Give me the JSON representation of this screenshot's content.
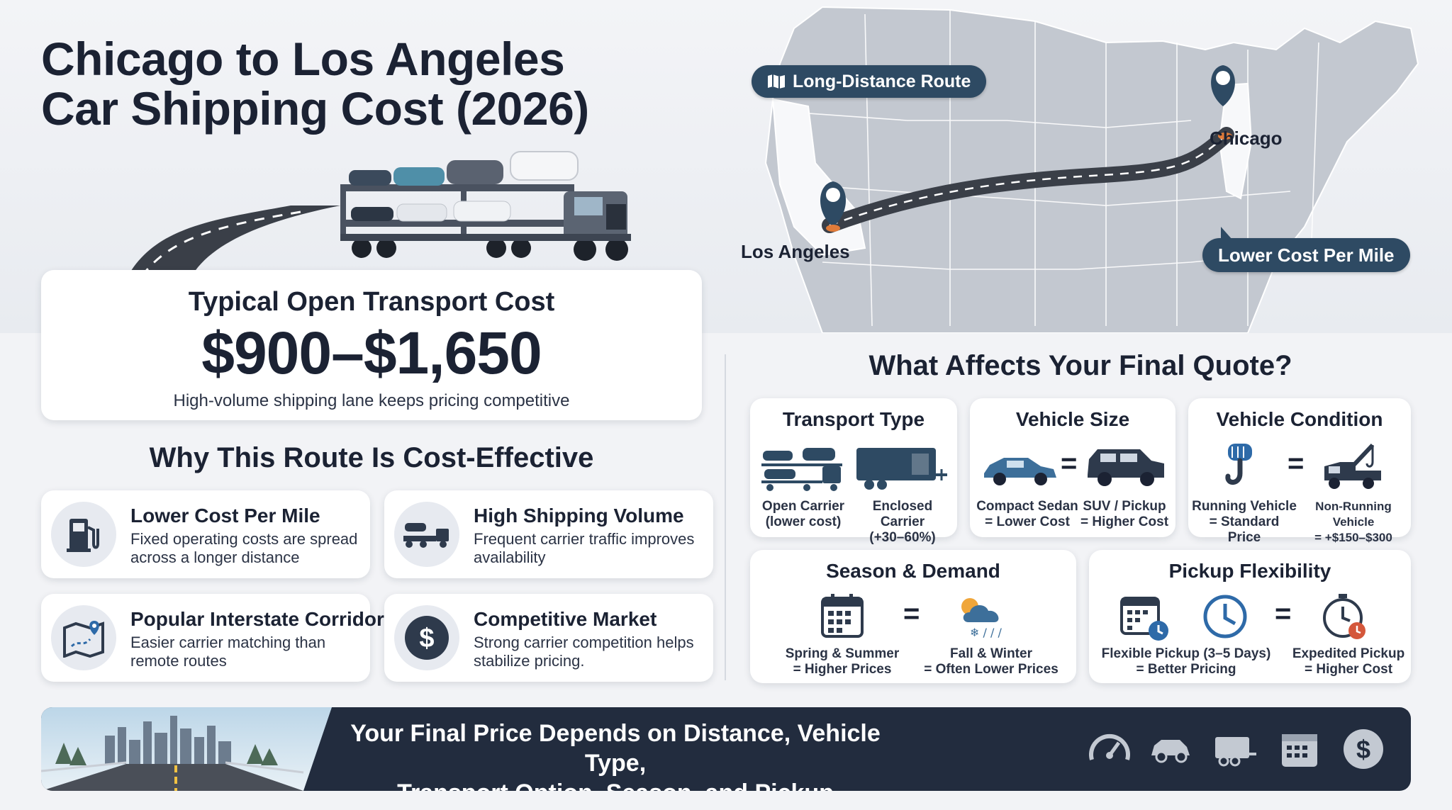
{
  "title": {
    "line1": "Chicago to Los Angeles",
    "line2": "Car Shipping Cost (2026)"
  },
  "map": {
    "route_pill": "Long-Distance Route",
    "origin": "Chicago",
    "destination": "Los Angeles",
    "lower_cost_pill": "Lower Cost Per Mile"
  },
  "cost": {
    "label": "Typical Open Transport Cost",
    "value": "$900–$1,650",
    "note": "High-volume shipping lane keeps pricing competitive"
  },
  "why": {
    "title": "Why This Route Is Cost-Effective",
    "items": [
      {
        "title": "Lower Cost Per Mile",
        "desc": "Fixed operating costs are spread across a longer distance",
        "icon": "fuel-pump-icon"
      },
      {
        "title": "High Shipping Volume",
        "desc": "Frequent carrier traffic improves availability",
        "icon": "car-carrier-icon"
      },
      {
        "title": "Popular Interstate Corridor",
        "desc": "Easier carrier matching than remote routes",
        "icon": "map-pin-icon"
      },
      {
        "title": "Competitive Market",
        "desc": "Strong carrier competition helps stabilize pricing.",
        "icon": "dollar-icon"
      }
    ]
  },
  "factors": {
    "title": "What Affects Your Final Quote?",
    "transport": {
      "title": "Transport Type",
      "cap1": "Open Carrier\n(lower cost)",
      "cap2": "Enclosed Carrier\n(+30–60%)"
    },
    "size": {
      "title": "Vehicle Size",
      "cap1": "Compact Sedan\n= Lower Cost",
      "cap2": "SUV / Pickup\n= Higher Cost"
    },
    "condition": {
      "title": "Vehicle Condition",
      "cap1": "Running Vehicle\n= Standard Price",
      "cap2": "Non-Running Vehicle\n= +$150–$300"
    },
    "season": {
      "title": "Season & Demand",
      "cap1": "Spring & Summer\n= Higher Prices",
      "cap2": "Fall & Winter\n= Often Lower Prices"
    },
    "pickup": {
      "title": "Pickup Flexibility",
      "cap1": "Flexible Pickup  (3–5 Days)\n= Better Pricing",
      "cap2": "Expedited Pickup\n= Higher Cost"
    }
  },
  "banner": {
    "line1": "Your Final Price Depends on Distance, Vehicle Type,",
    "line2": "Transport Option, Season, and Pickup Flexibility.",
    "icons": [
      "speedometer-icon",
      "car-icon",
      "trailer-icon",
      "calendar-icon",
      "dollar-icon"
    ]
  },
  "colors": {
    "navy": "#2e4a63",
    "dark": "#1b2233",
    "accent_orange": "#e07b39",
    "banner_bg": "#222c3e"
  }
}
